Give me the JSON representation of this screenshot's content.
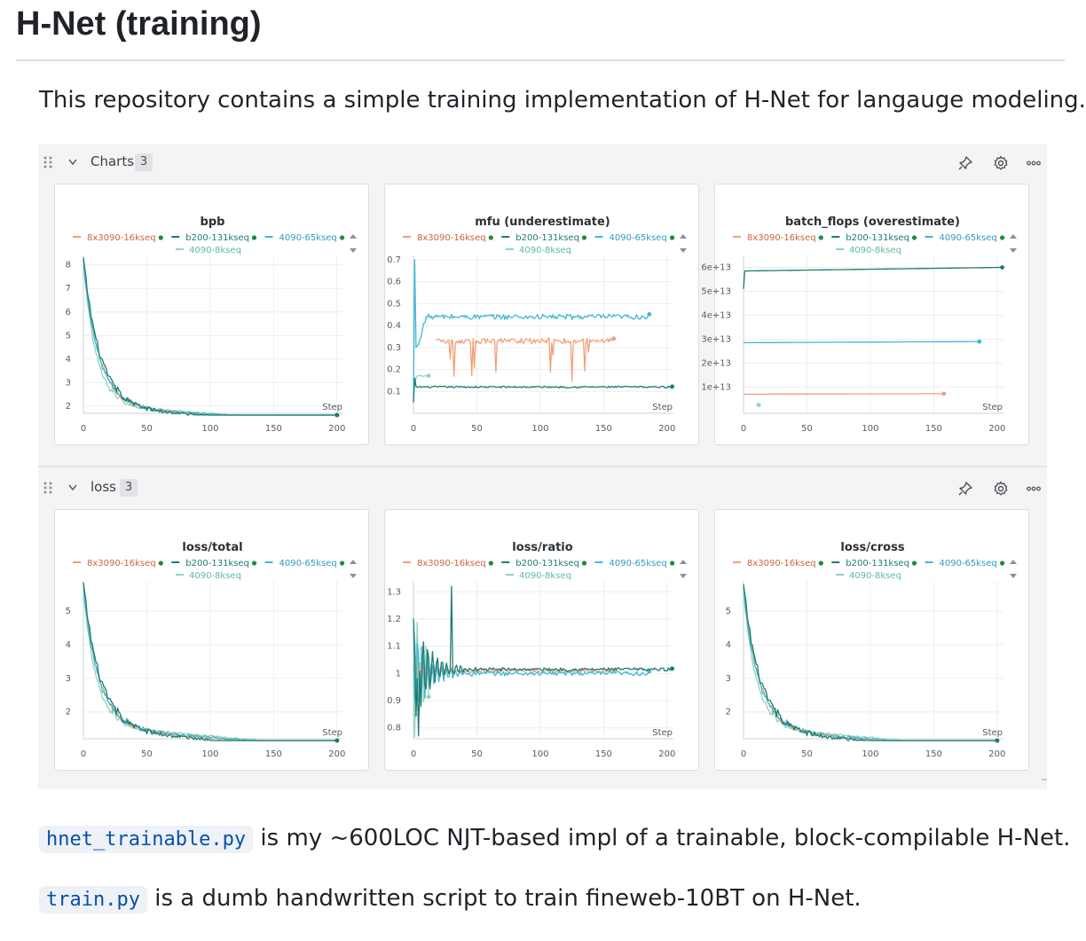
{
  "page": {
    "title": "H-Net (training)",
    "intro": "This repository contains a simple training implementation of H-Net for langauge modeling.",
    "para1": {
      "code": "hnet_trainable.py",
      "text": " is my ~600LOC NJT-based impl of a trainable, block-compilable H-Net."
    },
    "para2": {
      "code": "train.py",
      "text": " is a dumb handwritten script to train fineweb-10BT on H-Net."
    }
  },
  "sections": [
    {
      "title": "Charts",
      "count": "3"
    },
    {
      "title": "loss",
      "count": "3"
    }
  ],
  "header_icons": [
    "pin-icon",
    "gear-icon",
    "more-icon"
  ],
  "legend": {
    "entries": [
      {
        "name": "8x3090-16kseq",
        "color": "#f0a07a",
        "text_color": "#c8663c",
        "dot": "#1e8a3c"
      },
      {
        "name": "b200-131kseq",
        "color": "#1e7b72",
        "text_color": "#1e7b72",
        "dot": "#1e8a3c"
      },
      {
        "name": "4090-65kseq",
        "color": "#3fb8d4",
        "text_color": "#2a9fbd",
        "dot": "#1e8a3c"
      },
      {
        "name": "4090-8kseq",
        "color": "#8fd3c3",
        "text_color": "#5fb8a6",
        "dot": null
      }
    ]
  },
  "chart_data": [
    {
      "id": "bpb",
      "type": "line",
      "title": "bpb",
      "xlabel": "Step",
      "xlim": [
        0,
        205
      ],
      "ylim": [
        1.7,
        8.4
      ],
      "xticks": [
        0,
        50,
        100,
        150,
        200
      ],
      "yticks": [
        2,
        3,
        4,
        5,
        6,
        7,
        8
      ],
      "series": [
        {
          "name": "8x3090-16kseq",
          "kind": "decay",
          "x0": 0,
          "x1": 200,
          "a": 2.0,
          "b": 6.2,
          "c": 12,
          "d": 0.0035,
          "noise": 0.05
        },
        {
          "name": "b200-131kseq",
          "kind": "decay",
          "x0": 0,
          "x1": 200,
          "a": 1.95,
          "b": 6.3,
          "c": 13,
          "d": 0.0036,
          "noise": 0.06
        },
        {
          "name": "4090-65kseq",
          "kind": "decay",
          "x0": 0,
          "x1": 200,
          "a": 2.0,
          "b": 6.1,
          "c": 12,
          "d": 0.0034,
          "noise": 0.05
        },
        {
          "name": "4090-8kseq",
          "kind": "decay",
          "x0": 0,
          "x1": 200,
          "a": 2.05,
          "b": 6.0,
          "c": 10,
          "d": 0.0036,
          "noise": 0.04
        }
      ]
    },
    {
      "id": "mfu",
      "type": "line",
      "title": "mfu (underestimate)",
      "xlabel": "Step",
      "xlim": [
        0,
        205
      ],
      "ylim": [
        0.0,
        0.72
      ],
      "xticks": [
        0,
        50,
        100,
        150,
        200
      ],
      "yticks": [
        0.1,
        0.2,
        0.3,
        0.4,
        0.5,
        0.6,
        0.7
      ],
      "ytick_labels": [
        "0.1",
        "0.2",
        "0.3",
        "0.4",
        "0.5",
        "0.6",
        "0.7"
      ],
      "series": [
        {
          "name": "8x3090-16kseq",
          "kind": "mfu16",
          "x0": 18,
          "x1": 158,
          "level": 0.33,
          "noise": 0.012
        },
        {
          "name": "b200-131kseq",
          "kind": "mfu131",
          "x0": 0,
          "x1": 204,
          "level": 0.12,
          "noise": 0.004
        },
        {
          "name": "4090-65kseq",
          "kind": "mfu65",
          "x0": 0,
          "x1": 186,
          "level": 0.44,
          "noise": 0.012
        },
        {
          "name": "4090-8kseq",
          "kind": "mfu8",
          "x0": 0,
          "x1": 12,
          "level": 0.17,
          "noise": 0.003
        }
      ]
    },
    {
      "id": "batch_flops",
      "type": "line",
      "title": "batch_flops (overestimate)",
      "xlabel": "Step",
      "xlim": [
        0,
        205
      ],
      "ylim": [
        -1000000000000.0,
        65000000000000.0
      ],
      "xticks": [
        0,
        50,
        100,
        150,
        200
      ],
      "yticks": [
        10000000000000.0,
        20000000000000.0,
        30000000000000.0,
        40000000000000.0,
        50000000000000.0,
        60000000000000.0
      ],
      "ytick_labels": [
        "1e+13",
        "2e+13",
        "3e+13",
        "4e+13",
        "5e+13",
        "6e+13"
      ],
      "series": [
        {
          "name": "8x3090-16kseq",
          "kind": "flat",
          "x0": 0,
          "x1": 158,
          "v0": 7000000000000.0,
          "v1": 7200000000000.0,
          "noise": 0
        },
        {
          "name": "b200-131kseq",
          "kind": "flatjump",
          "x0": 0,
          "x1": 204,
          "v0": 58500000000000.0,
          "v1": 60000000000000.0,
          "start": 51000000000000.0,
          "noise": 0
        },
        {
          "name": "4090-65kseq",
          "kind": "flat",
          "x0": 0,
          "x1": 186,
          "v0": 28500000000000.0,
          "v1": 29000000000000.0,
          "noise": 0
        },
        {
          "name": "4090-8kseq",
          "kind": "flat",
          "x0": 10,
          "x1": 12,
          "v0": 2500000000000.0,
          "v1": 2500000000000.0,
          "noise": 0
        }
      ]
    },
    {
      "id": "loss_total",
      "type": "line",
      "title": "loss/total",
      "xlabel": "Step",
      "xlim": [
        0,
        205
      ],
      "ylim": [
        1.2,
        5.9
      ],
      "xticks": [
        0,
        50,
        100,
        150,
        200
      ],
      "yticks": [
        2,
        3,
        4,
        5
      ],
      "series": [
        {
          "name": "8x3090-16kseq",
          "kind": "decay",
          "x0": 0,
          "x1": 200,
          "a": 1.55,
          "b": 4.2,
          "c": 12,
          "d": 0.0032,
          "noise": 0.04
        },
        {
          "name": "b200-131kseq",
          "kind": "decay",
          "x0": 0,
          "x1": 200,
          "a": 1.5,
          "b": 4.3,
          "c": 13,
          "d": 0.0033,
          "noise": 0.05
        },
        {
          "name": "4090-65kseq",
          "kind": "decay",
          "x0": 0,
          "x1": 200,
          "a": 1.55,
          "b": 4.15,
          "c": 12,
          "d": 0.0031,
          "noise": 0.04
        },
        {
          "name": "4090-8kseq",
          "kind": "decay",
          "x0": 0,
          "x1": 200,
          "a": 1.6,
          "b": 4.0,
          "c": 10,
          "d": 0.0032,
          "noise": 0.03
        }
      ]
    },
    {
      "id": "loss_ratio",
      "type": "line",
      "title": "loss/ratio",
      "xlabel": "Step",
      "xlim": [
        0,
        205
      ],
      "ylim": [
        0.76,
        1.34
      ],
      "xticks": [
        0,
        50,
        100,
        150,
        200
      ],
      "yticks": [
        0.8,
        0.9,
        1.0,
        1.1,
        1.2,
        1.3
      ],
      "ytick_labels": [
        "0.8",
        "0.9",
        "1",
        "1.1",
        "1.2",
        "1.3"
      ],
      "series": [
        {
          "name": "8x3090-16kseq",
          "kind": "ratio",
          "x0": 0,
          "x1": 158,
          "level": 1.01,
          "noise": 0.008,
          "amp": 0.06
        },
        {
          "name": "b200-131kseq",
          "kind": "ratio",
          "x0": 0,
          "x1": 204,
          "level": 1.015,
          "noise": 0.006,
          "amp": 0.22
        },
        {
          "name": "4090-65kseq",
          "kind": "ratio",
          "x0": 0,
          "x1": 186,
          "level": 1.0,
          "noise": 0.008,
          "amp": 0.18
        },
        {
          "name": "4090-8kseq",
          "kind": "ratio",
          "x0": 0,
          "x1": 12,
          "level": 1.0,
          "noise": 0.01,
          "amp": 0.25
        }
      ]
    },
    {
      "id": "loss_cross",
      "type": "line",
      "title": "loss/cross",
      "xlabel": "Step",
      "xlim": [
        0,
        205
      ],
      "ylim": [
        1.2,
        5.9
      ],
      "xticks": [
        0,
        50,
        100,
        150,
        200
      ],
      "yticks": [
        2,
        3,
        4,
        5
      ],
      "series": [
        {
          "name": "8x3090-16kseq",
          "kind": "decay",
          "x0": 0,
          "x1": 200,
          "a": 1.5,
          "b": 4.2,
          "c": 12,
          "d": 0.0032,
          "noise": 0.04
        },
        {
          "name": "b200-131kseq",
          "kind": "decay",
          "x0": 0,
          "x1": 200,
          "a": 1.45,
          "b": 4.3,
          "c": 13,
          "d": 0.0033,
          "noise": 0.05
        },
        {
          "name": "4090-65kseq",
          "kind": "decay",
          "x0": 0,
          "x1": 200,
          "a": 1.5,
          "b": 4.15,
          "c": 12,
          "d": 0.0031,
          "noise": 0.04
        },
        {
          "name": "4090-8kseq",
          "kind": "decay",
          "x0": 0,
          "x1": 200,
          "a": 1.55,
          "b": 4.0,
          "c": 10,
          "d": 0.0032,
          "noise": 0.03
        }
      ]
    }
  ]
}
